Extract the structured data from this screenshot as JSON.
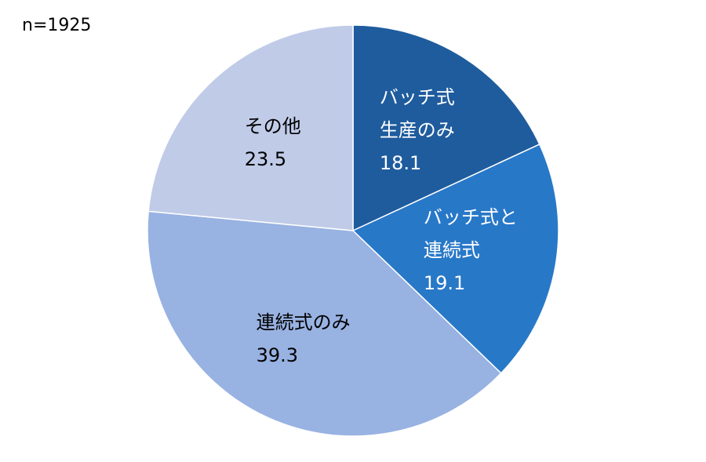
{
  "chart_data": {
    "type": "pie",
    "annotation": "n=1925",
    "categories": [
      "バッチ式\n生産のみ",
      "バッチ式と\n連続式",
      "連続式のみ",
      "その他"
    ],
    "values": [
      18.1,
      19.1,
      39.3,
      23.5
    ],
    "colors": [
      "#1f5c9e",
      "#2878c8",
      "#98b2e2",
      "#c0cbe8"
    ],
    "label_colors": [
      "#ffffff",
      "#ffffff",
      "#000000",
      "#000000"
    ]
  }
}
